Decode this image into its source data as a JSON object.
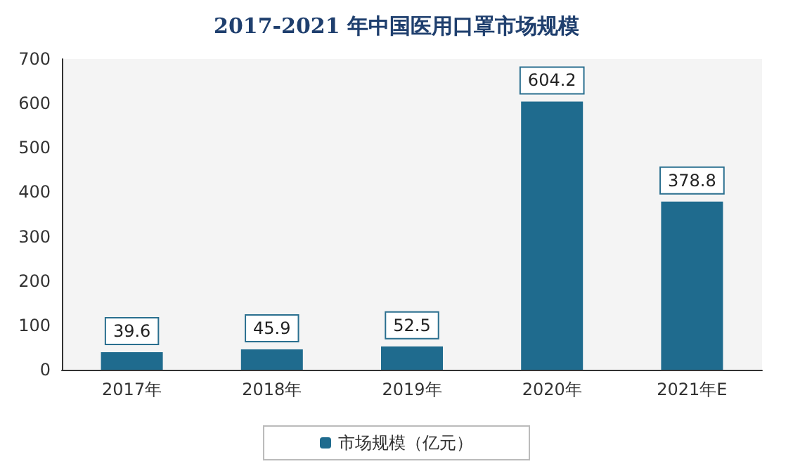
{
  "chart_data": {
    "type": "bar",
    "title": "2017-2021 年中国医用口罩市场规模",
    "categories": [
      "2017年",
      "2018年",
      "2019年",
      "2020年",
      "2021年E"
    ],
    "series": [
      {
        "name": "市场规模（亿元）",
        "color": "#1f6b8e",
        "values": [
          39.6,
          45.9,
          52.5,
          604.2,
          378.8
        ]
      }
    ],
    "ylim": [
      0,
      700
    ],
    "yticks": [
      0,
      100,
      200,
      300,
      400,
      500,
      600,
      700
    ],
    "grid": false,
    "legend": "bottom",
    "data_labels": true
  }
}
